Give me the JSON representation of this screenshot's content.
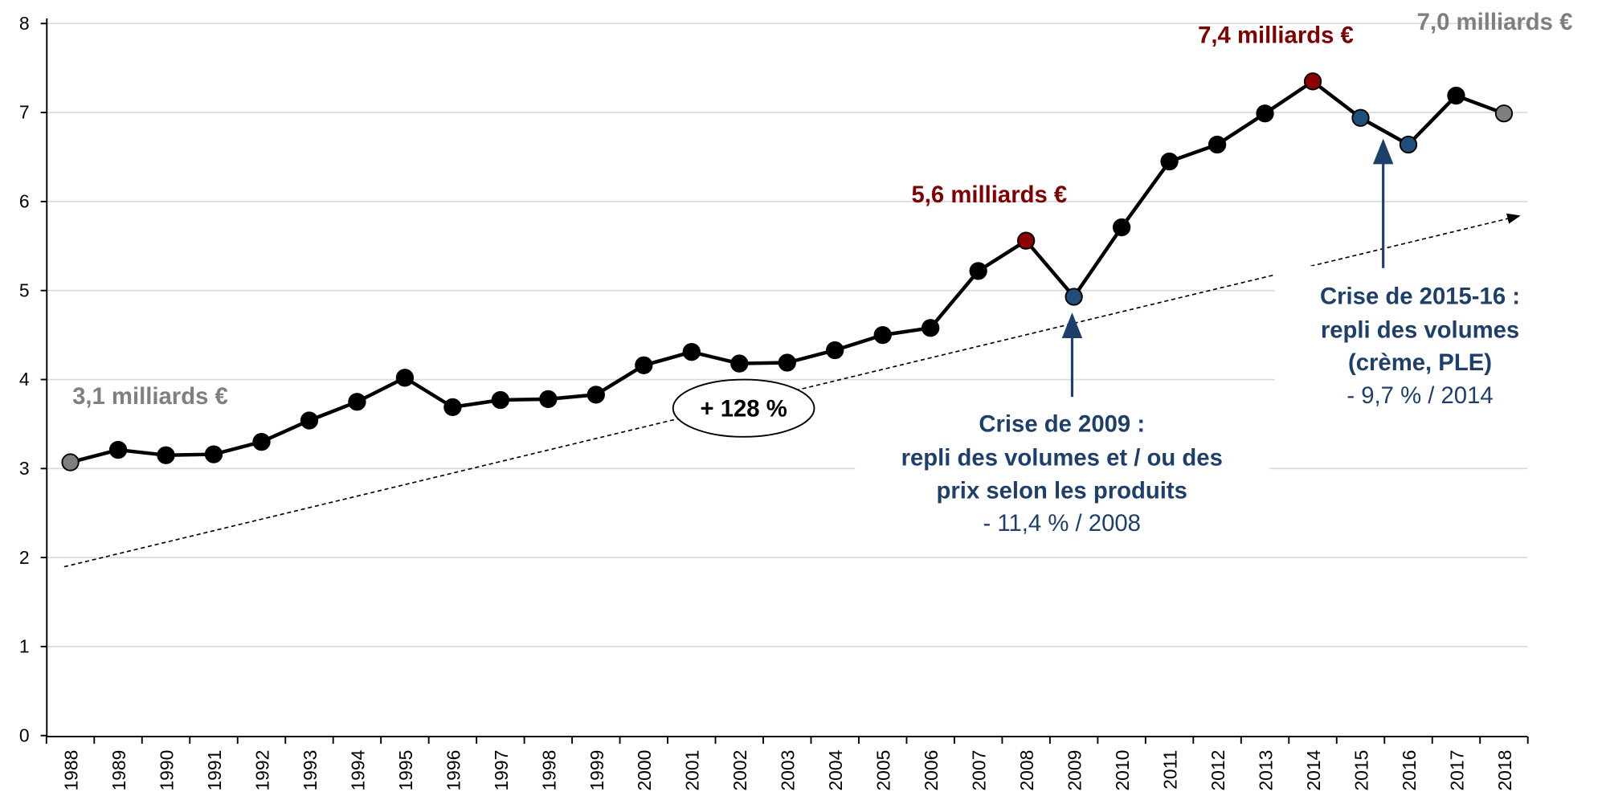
{
  "chart_data": {
    "type": "line",
    "categories": [
      "1988",
      "1989",
      "1990",
      "1991",
      "1992",
      "1993",
      "1994",
      "1995",
      "1996",
      "1997",
      "1998",
      "1999",
      "2000",
      "2001",
      "2002",
      "2003",
      "2004",
      "2005",
      "2006",
      "2007",
      "2008",
      "2009",
      "2010",
      "2011",
      "2012",
      "2013",
      "2014",
      "2015",
      "2016",
      "2017",
      "2018"
    ],
    "series": [
      {
        "color": "#000000",
        "values": [
          3.07,
          3.21,
          3.15,
          3.16,
          3.3,
          3.54,
          3.75,
          4.02,
          3.69,
          3.77,
          3.78,
          3.83,
          4.16,
          4.31,
          4.18,
          4.19,
          4.33,
          4.5,
          4.58,
          5.22,
          5.56,
          4.93,
          5.71,
          6.45,
          6.64,
          6.99,
          7.35,
          6.94,
          6.64,
          7.19,
          6.99
        ],
        "point_colors": [
          "#7f7f7f",
          "#000000",
          "#000000",
          "#000000",
          "#000000",
          "#000000",
          "#000000",
          "#000000",
          "#000000",
          "#000000",
          "#000000",
          "#000000",
          "#000000",
          "#000000",
          "#000000",
          "#000000",
          "#000000",
          "#000000",
          "#000000",
          "#000000",
          "#8b0000",
          "#1f4e79",
          "#000000",
          "#000000",
          "#000000",
          "#000000",
          "#8b0000",
          "#1f4e79",
          "#1f4e79",
          "#000000",
          "#7f7f7f"
        ]
      }
    ],
    "ylim": [
      0,
      8
    ],
    "yticks": [
      0,
      1,
      2,
      3,
      4,
      5,
      6,
      7,
      8
    ],
    "grid": true,
    "annotations": {
      "start": "3,1 milliards €",
      "peak2008": "5,6 milliards €",
      "peak2014": "7,4 milliards €",
      "end": "7,0 milliards €",
      "growth": "+ 128 %",
      "crisis2009": [
        "Crise de 2009 :",
        "repli des volumes et / ou des",
        "prix selon les produits",
        "- 11,4 % / 2008"
      ],
      "crisis2015": [
        "Crise de 2015-16 :",
        "repli des volumes",
        "(crème, PLE)",
        "- 9,7 % / 2014"
      ]
    }
  }
}
